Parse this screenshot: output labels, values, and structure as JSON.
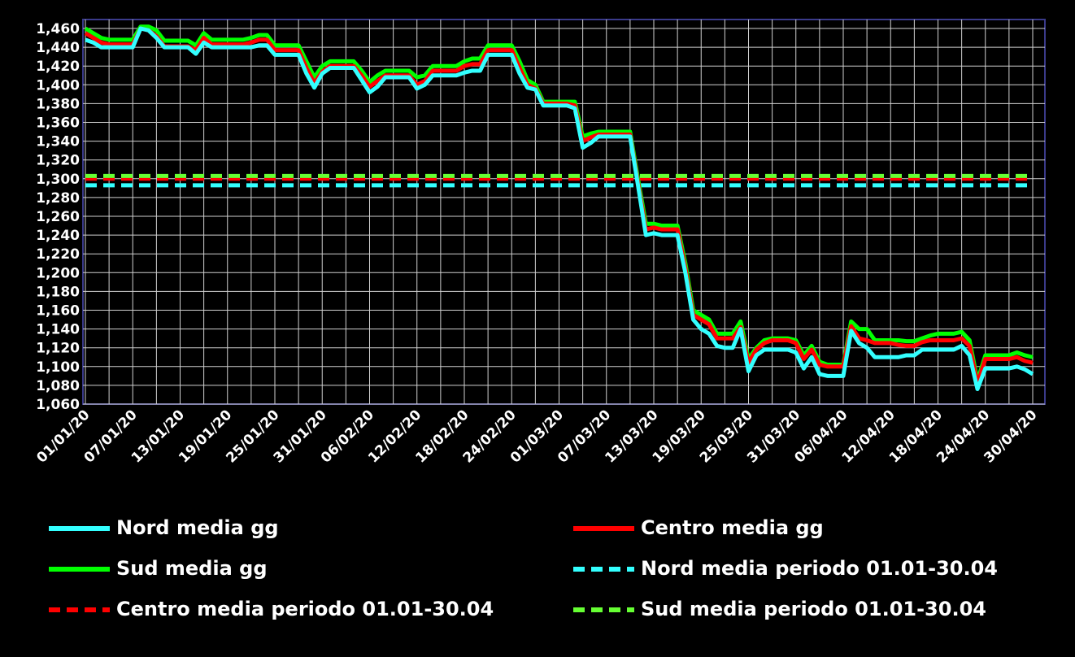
{
  "chart_data": {
    "type": "line",
    "categories": [
      "01/01/20",
      null,
      null,
      null,
      null,
      null,
      "07/01/20",
      null,
      null,
      null,
      null,
      null,
      "13/01/20",
      null,
      null,
      null,
      null,
      null,
      "19/01/20",
      null,
      null,
      null,
      null,
      null,
      "25/01/20",
      null,
      null,
      null,
      null,
      null,
      "31/01/20",
      null,
      null,
      null,
      null,
      null,
      "06/02/20",
      null,
      null,
      null,
      null,
      null,
      "12/02/20",
      null,
      null,
      null,
      null,
      null,
      "18/02/20",
      null,
      null,
      null,
      null,
      null,
      "24/02/20",
      null,
      null,
      null,
      null,
      null,
      "01/03/20",
      null,
      null,
      null,
      null,
      null,
      "07/03/20",
      null,
      null,
      null,
      null,
      null,
      "13/03/20",
      null,
      null,
      null,
      null,
      null,
      "19/03/20",
      null,
      null,
      null,
      null,
      null,
      "25/03/20",
      null,
      null,
      null,
      null,
      null,
      "31/03/20",
      null,
      null,
      null,
      null,
      null,
      "06/04/20",
      null,
      null,
      null,
      null,
      null,
      "12/04/20",
      null,
      null,
      null,
      null,
      null,
      "18/04/20",
      null,
      null,
      null,
      null,
      null,
      "24/04/20",
      null,
      null,
      null,
      null,
      null,
      "30/04/20"
    ],
    "series": [
      {
        "name": "Nord media gg",
        "color": "#33ffff",
        "values": [
          1448,
          1445,
          1440,
          1440,
          1440,
          1440,
          1440,
          1460,
          1458,
          1450,
          1440,
          1440,
          1440,
          1440,
          1433,
          1445,
          1440,
          1440,
          1440,
          1440,
          1440,
          1440,
          1442,
          1442,
          1432,
          1432,
          1432,
          1432,
          1412,
          1397,
          1412,
          1418,
          1418,
          1418,
          1418,
          1405,
          1392,
          1398,
          1408,
          1408,
          1408,
          1408,
          1396,
          1400,
          1410,
          1410,
          1410,
          1410,
          1413,
          1415,
          1415,
          1432,
          1432,
          1432,
          1432,
          1412,
          1397,
          1395,
          1378,
          1378,
          1378,
          1378,
          1375,
          1333,
          1338,
          1345,
          1345,
          1345,
          1345,
          1345,
          1293,
          1240,
          1242,
          1240,
          1240,
          1240,
          1200,
          1150,
          1140,
          1135,
          1122,
          1120,
          1120,
          1140,
          1095,
          1112,
          1118,
          1118,
          1118,
          1118,
          1115,
          1098,
          1110,
          1092,
          1090,
          1090,
          1090,
          1138,
          1125,
          1120,
          1110,
          1110,
          1110,
          1110,
          1112,
          1112,
          1118,
          1118,
          1118,
          1118,
          1118,
          1122,
          1112,
          1076,
          1098,
          1098,
          1098,
          1098,
          1100,
          1097,
          1092
        ]
      },
      {
        "name": "Centro media gg",
        "color": "#ff0000",
        "values": [
          1455,
          1450,
          1445,
          1443,
          1443,
          1443,
          1443,
          1460,
          1458,
          1452,
          1441,
          1441,
          1441,
          1441,
          1437,
          1450,
          1443,
          1443,
          1443,
          1443,
          1443,
          1445,
          1448,
          1448,
          1437,
          1437,
          1437,
          1437,
          1418,
          1402,
          1414,
          1420,
          1420,
          1420,
          1420,
          1410,
          1398,
          1404,
          1410,
          1410,
          1410,
          1410,
          1400,
          1404,
          1415,
          1415,
          1415,
          1415,
          1420,
          1422,
          1422,
          1437,
          1437,
          1437,
          1437,
          1418,
          1400,
          1396,
          1380,
          1380,
          1380,
          1380,
          1378,
          1340,
          1344,
          1347,
          1347,
          1347,
          1347,
          1347,
          1296,
          1246,
          1248,
          1246,
          1246,
          1246,
          1205,
          1155,
          1150,
          1145,
          1130,
          1130,
          1130,
          1142,
          1104,
          1118,
          1125,
          1128,
          1128,
          1128,
          1125,
          1108,
          1118,
          1102,
          1100,
          1100,
          1100,
          1143,
          1130,
          1128,
          1125,
          1125,
          1125,
          1123,
          1122,
          1122,
          1126,
          1128,
          1128,
          1128,
          1128,
          1130,
          1122,
          1082,
          1108,
          1108,
          1108,
          1108,
          1110,
          1106,
          1104
        ]
      },
      {
        "name": "Sud media gg",
        "color": "#00ff00",
        "values": [
          1460,
          1455,
          1450,
          1448,
          1448,
          1448,
          1448,
          1462,
          1462,
          1458,
          1447,
          1447,
          1447,
          1447,
          1442,
          1455,
          1448,
          1448,
          1448,
          1448,
          1448,
          1450,
          1453,
          1453,
          1442,
          1442,
          1442,
          1442,
          1425,
          1408,
          1420,
          1425,
          1425,
          1425,
          1425,
          1415,
          1403,
          1410,
          1415,
          1415,
          1415,
          1415,
          1408,
          1410,
          1420,
          1420,
          1420,
          1420,
          1425,
          1428,
          1428,
          1442,
          1442,
          1442,
          1442,
          1425,
          1405,
          1400,
          1382,
          1382,
          1382,
          1382,
          1382,
          1345,
          1348,
          1350,
          1350,
          1350,
          1350,
          1350,
          1300,
          1252,
          1252,
          1250,
          1250,
          1250,
          1210,
          1160,
          1155,
          1150,
          1135,
          1135,
          1135,
          1148,
          1108,
          1120,
          1128,
          1130,
          1130,
          1130,
          1128,
          1112,
          1122,
          1105,
          1102,
          1102,
          1102,
          1148,
          1140,
          1140,
          1128,
          1128,
          1128,
          1128,
          1127,
          1127,
          1130,
          1133,
          1135,
          1135,
          1135,
          1137,
          1128,
          1085,
          1112,
          1112,
          1112,
          1112,
          1115,
          1112,
          1110
        ]
      }
    ],
    "reference_lines": [
      {
        "name": "Nord media periodo 01.01-30.04",
        "color": "#33ffff",
        "value": 1293
      },
      {
        "name": "Centro media periodo 01.01-30.04",
        "color": "#ff0000",
        "value": 1300
      },
      {
        "name": "Sud media periodo 01.01-30.04",
        "color": "#66ff33",
        "value": 1303
      }
    ],
    "ylim": [
      1060,
      1460
    ],
    "yticks": [
      {
        "value": 1060,
        "label": "1,060"
      },
      {
        "value": 1080,
        "label": "1,080"
      },
      {
        "value": 1100,
        "label": "1,100"
      },
      {
        "value": 1120,
        "label": "1,120"
      },
      {
        "value": 1140,
        "label": "1,140"
      },
      {
        "value": 1160,
        "label": "1,160"
      },
      {
        "value": 1180,
        "label": "1,180"
      },
      {
        "value": 1200,
        "label": "1,200"
      },
      {
        "value": 1220,
        "label": "1,220"
      },
      {
        "value": 1240,
        "label": "1,240"
      },
      {
        "value": 1260,
        "label": "1,260"
      },
      {
        "value": 1280,
        "label": "1,280"
      },
      {
        "value": 1300,
        "label": "1,300"
      },
      {
        "value": 1320,
        "label": "1,320"
      },
      {
        "value": 1340,
        "label": "1,340"
      },
      {
        "value": 1360,
        "label": "1,360"
      },
      {
        "value": 1380,
        "label": "1,380"
      },
      {
        "value": 1400,
        "label": "1,400"
      },
      {
        "value": 1420,
        "label": "1,420"
      },
      {
        "value": 1440,
        "label": "1,440"
      },
      {
        "value": 1460,
        "label": "1,460"
      }
    ],
    "grid": true
  }
}
